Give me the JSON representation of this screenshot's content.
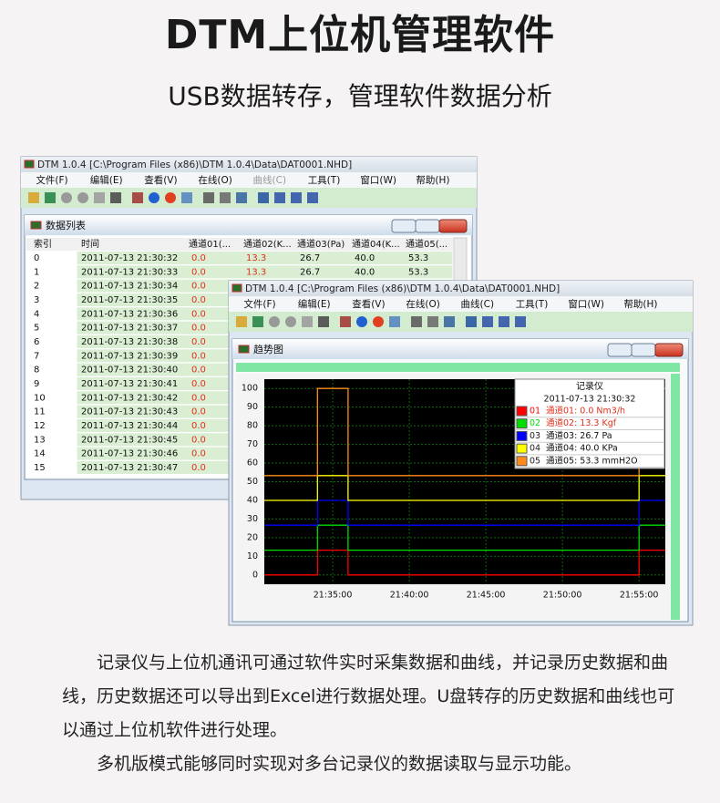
{
  "header": {
    "title": "DTM上位机管理软件",
    "subtitle": "USB数据转存，管理软件数据分析"
  },
  "window_title": "DTM 1.0.4 [C:\\Program Files (x86)\\DTM 1.0.4\\Data\\DAT0001.NHD]",
  "menu": [
    "文件(F)",
    "编辑(E)",
    "查看(V)",
    "在线(O)",
    "曲线(C)",
    "工具(T)",
    "窗口(W)",
    "帮助(H)"
  ],
  "list_window": {
    "panel_title": "数据列表",
    "columns": [
      "索引",
      "时间",
      "通道01(...",
      "通道02(K...",
      "通道03(Pa)",
      "通道04(K...",
      "通道05(..."
    ],
    "rows": [
      [
        "0",
        "2011-07-13 21:30:32",
        "0.0",
        "13.3",
        "26.7",
        "40.0",
        "53.3"
      ],
      [
        "1",
        "2011-07-13 21:30:33",
        "0.0",
        "13.3",
        "26.7",
        "40.0",
        "53.3"
      ],
      [
        "2",
        "2011-07-13 21:30:34",
        "0.0"
      ],
      [
        "3",
        "2011-07-13 21:30:35",
        "0.0"
      ],
      [
        "4",
        "2011-07-13 21:30:36",
        "0.0"
      ],
      [
        "5",
        "2011-07-13 21:30:37",
        "0.0"
      ],
      [
        "6",
        "2011-07-13 21:30:38",
        "0.0"
      ],
      [
        "7",
        "2011-07-13 21:30:39",
        "0.0"
      ],
      [
        "8",
        "2011-07-13 21:30:40",
        "0.0"
      ],
      [
        "9",
        "2011-07-13 21:30:41",
        "0.0"
      ],
      [
        "10",
        "2011-07-13 21:30:42",
        "0.0"
      ],
      [
        "11",
        "2011-07-13 21:30:43",
        "0.0"
      ],
      [
        "12",
        "2011-07-13 21:30:44",
        "0.0"
      ],
      [
        "13",
        "2011-07-13 21:30:45",
        "0.0"
      ],
      [
        "14",
        "2011-07-13 21:30:46",
        "0.0"
      ],
      [
        "15",
        "2011-07-13 21:30:47",
        "0.0"
      ]
    ]
  },
  "trend_window": {
    "panel_title": "趋势图",
    "chart": {
      "type": "line",
      "x": [
        "21:30:32",
        "21:34:00",
        "21:34:00",
        "21:36:00",
        "21:36:00",
        "21:55:00",
        "21:55:00",
        "21:56:43"
      ],
      "xlim": [
        "21:30:32",
        "21:56:43"
      ],
      "xticks": [
        "21:35:00",
        "21:40:00",
        "21:45:00",
        "21:50:00",
        "21:55:00"
      ],
      "ylim": [
        -5,
        105
      ],
      "yticks": [
        0,
        10,
        20,
        30,
        40,
        50,
        60,
        70,
        80,
        90,
        100
      ],
      "grid": true,
      "legend_title": "记录仪",
      "legend_time": "2011-07-13 21:30:32",
      "series": [
        {
          "name": "01",
          "label": "通道01: 0.0 Nm3/h",
          "color": "#ff0000",
          "values": [
            0,
            0,
            13.3,
            13.3,
            0,
            0,
            13.3,
            13.3
          ]
        },
        {
          "name": "02",
          "label": "通道02: 13.3 Kgf",
          "color": "#00dd00",
          "values": [
            13.3,
            13.3,
            26.7,
            26.7,
            13.3,
            13.3,
            26.7,
            26.7
          ]
        },
        {
          "name": "03",
          "label": "通道03: 26.7 Pa",
          "color": "#0000ff",
          "values": [
            26.7,
            26.7,
            40,
            40,
            26.7,
            26.7,
            40,
            40
          ]
        },
        {
          "name": "04",
          "label": "通道04: 40.0 KPa",
          "color": "#ffff00",
          "values": [
            40,
            40,
            53.3,
            53.3,
            40,
            40,
            53.3,
            53.3
          ]
        },
        {
          "name": "05",
          "label": "通道05: 53.3 mmH2O",
          "color": "#ff8c1a",
          "values": [
            53.3,
            53.3,
            100,
            100,
            53.3,
            53.3,
            100,
            100
          ]
        }
      ]
    }
  },
  "body": {
    "paragraphs": [
      "记录仪与上位机通讯可通过软件实时采集数据和曲线，并记录历史数据和曲线，历史数据还可以导出到Excel进行数据处理。U盘转存的历史数据和曲线也可以通过上位机软件进行处理。",
      "多机版模式能够同时实现对多台记录仪的数据读取与显示功能。"
    ]
  }
}
